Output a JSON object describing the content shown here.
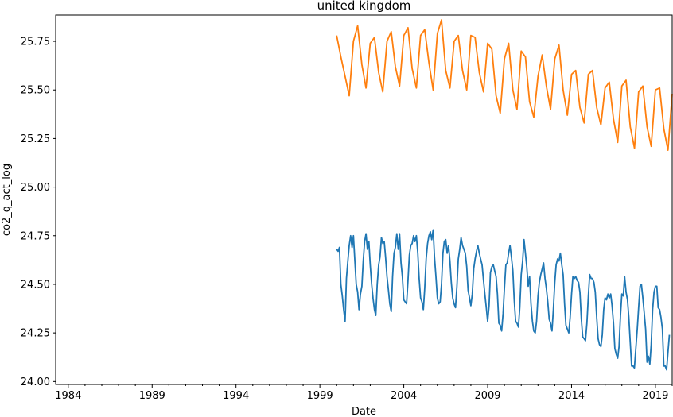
{
  "chart_data": {
    "type": "line",
    "title": "united kingdom",
    "xlabel": "Date",
    "ylabel": "co2_q_act_log",
    "xlim": [
      1983.25,
      2020.0
    ],
    "ylim": [
      23.985,
      25.885
    ],
    "x_ticks": [
      "1984",
      "1989",
      "1994",
      "1999",
      "2004",
      "2009",
      "2014",
      "2019"
    ],
    "y_ticks": [
      "24.00",
      "24.25",
      "24.50",
      "24.75",
      "25.00",
      "25.25",
      "25.50",
      "25.75"
    ],
    "grid": false,
    "legend": "none",
    "series": [
      {
        "color": "#ff7f0e",
        "frequency": "quarterly",
        "x": [
          2000.0,
          2000.25,
          2000.5,
          2000.75,
          2001.0,
          2001.25,
          2001.5,
          2001.75,
          2002.0,
          2002.25,
          2002.5,
          2002.75,
          2003.0,
          2003.25,
          2003.5,
          2003.75,
          2004.0,
          2004.25,
          2004.5,
          2004.75,
          2005.0,
          2005.25,
          2005.5,
          2005.75,
          2006.0,
          2006.25,
          2006.5,
          2006.75,
          2007.0,
          2007.25,
          2007.5,
          2007.75,
          2008.0,
          2008.25,
          2008.5,
          2008.75,
          2009.0,
          2009.25,
          2009.5,
          2009.75,
          2010.0,
          2010.25,
          2010.5,
          2010.75,
          2011.0,
          2011.25,
          2011.5,
          2011.75,
          2012.0,
          2012.25,
          2012.5,
          2012.75,
          2013.0,
          2013.25,
          2013.5,
          2013.75,
          2014.0,
          2014.25,
          2014.5,
          2014.75,
          2015.0,
          2015.25,
          2015.5,
          2015.75,
          2016.0,
          2016.25,
          2016.5,
          2016.75,
          2017.0,
          2017.25,
          2017.5,
          2017.75,
          2018.0,
          2018.25,
          2018.5,
          2018.75,
          2019.0,
          2019.25,
          2019.5,
          2019.75,
          2020.0
        ],
        "values": [
          25.78,
          25.67,
          25.57,
          25.47,
          25.75,
          25.83,
          25.63,
          25.51,
          25.74,
          25.77,
          25.59,
          25.49,
          25.75,
          25.8,
          25.62,
          25.52,
          25.78,
          25.82,
          25.61,
          25.51,
          25.78,
          25.81,
          25.64,
          25.5,
          25.79,
          25.86,
          25.6,
          25.51,
          25.75,
          25.78,
          25.6,
          25.5,
          25.78,
          25.77,
          25.59,
          25.49,
          25.74,
          25.71,
          25.47,
          25.38,
          25.66,
          25.74,
          25.5,
          25.4,
          25.7,
          25.67,
          25.44,
          25.36,
          25.57,
          25.68,
          25.52,
          25.4,
          25.66,
          25.73,
          25.5,
          25.37,
          25.58,
          25.6,
          25.41,
          25.33,
          25.58,
          25.6,
          25.41,
          25.32,
          25.51,
          25.54,
          25.35,
          25.23,
          25.52,
          25.55,
          25.31,
          25.2,
          25.49,
          25.52,
          25.31,
          25.21,
          25.5,
          25.51,
          25.3,
          25.19,
          25.48
        ]
      },
      {
        "color": "#1f77b4",
        "frequency": "monthly",
        "x_start": 2000.0,
        "x_step": 0.083333,
        "values": [
          24.68,
          24.67,
          24.69,
          24.5,
          24.44,
          24.37,
          24.31,
          24.53,
          24.62,
          24.7,
          24.75,
          24.69,
          24.75,
          24.62,
          24.5,
          24.46,
          24.37,
          24.45,
          24.49,
          24.62,
          24.72,
          24.76,
          24.68,
          24.72,
          24.6,
          24.5,
          24.43,
          24.37,
          24.34,
          24.5,
          24.6,
          24.64,
          24.74,
          24.71,
          24.72,
          24.64,
          24.54,
          24.47,
          24.4,
          24.36,
          24.54,
          24.66,
          24.69,
          24.76,
          24.68,
          24.76,
          24.61,
          24.54,
          24.42,
          24.41,
          24.4,
          24.52,
          24.65,
          24.7,
          24.71,
          24.75,
          24.72,
          24.75,
          24.66,
          24.53,
          24.43,
          24.41,
          24.37,
          24.48,
          24.63,
          24.71,
          24.75,
          24.77,
          24.73,
          24.78,
          24.64,
          24.54,
          24.43,
          24.4,
          24.41,
          24.5,
          24.66,
          24.72,
          24.73,
          24.66,
          24.7,
          24.62,
          24.51,
          24.43,
          24.4,
          24.38,
          24.49,
          24.63,
          24.68,
          24.74,
          24.7,
          24.68,
          24.66,
          24.59,
          24.47,
          24.43,
          24.39,
          24.45,
          24.58,
          24.63,
          24.67,
          24.7,
          24.66,
          24.63,
          24.6,
          24.52,
          24.45,
          24.38,
          24.31,
          24.39,
          24.56,
          24.59,
          24.6,
          24.57,
          24.54,
          24.45,
          24.3,
          24.29,
          24.26,
          24.35,
          24.48,
          24.6,
          24.61,
          24.66,
          24.7,
          24.64,
          24.57,
          24.42,
          24.31,
          24.3,
          24.28,
          24.38,
          24.55,
          24.62,
          24.73,
          24.66,
          24.59,
          24.49,
          24.54,
          24.4,
          24.31,
          24.26,
          24.25,
          24.31,
          24.44,
          24.51,
          24.55,
          24.58,
          24.61,
          24.53,
          24.48,
          24.41,
          24.32,
          24.3,
          24.26,
          24.37,
          24.51,
          24.6,
          24.63,
          24.62,
          24.66,
          24.6,
          24.55,
          24.4,
          24.29,
          24.27,
          24.25,
          24.33,
          24.45,
          24.54,
          24.53,
          24.54,
          24.52,
          24.51,
          24.46,
          24.32,
          24.23,
          24.22,
          24.21,
          24.3,
          24.44,
          24.55,
          24.53,
          24.53,
          24.51,
          24.46,
          24.33,
          24.22,
          24.19,
          24.18,
          24.24,
          24.37,
          24.43,
          24.42,
          24.45,
          24.43,
          24.45,
          24.39,
          24.3,
          24.17,
          24.14,
          24.12,
          24.18,
          24.34,
          24.45,
          24.44,
          24.54,
          24.46,
          24.42,
          24.33,
          24.2,
          24.08,
          24.08,
          24.07,
          24.17,
          24.27,
          24.38,
          24.49,
          24.5,
          24.43,
          24.35,
          24.27,
          24.1,
          24.13,
          24.09,
          24.19,
          24.37,
          24.46,
          24.49,
          24.49,
          24.38,
          24.37,
          24.33,
          24.27,
          24.08,
          24.08,
          24.06,
          24.15,
          24.24
        ]
      }
    ]
  }
}
